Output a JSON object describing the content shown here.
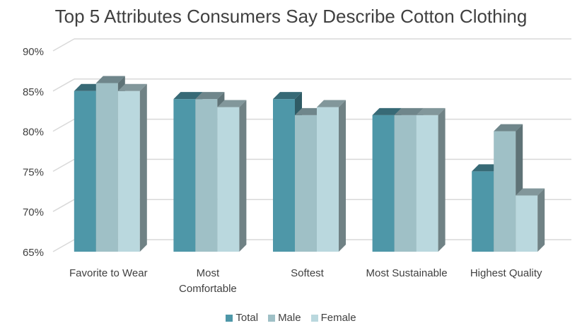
{
  "chart_data": {
    "type": "bar",
    "title": "Top 5 Attributes Consumers Say Describe Cotton Clothing",
    "categories": [
      "Favorite to Wear",
      "Most Comfortable",
      "Softest",
      "Most Sustainable",
      "Highest Quality"
    ],
    "series": [
      {
        "name": "Total",
        "values": [
          85,
          84,
          84,
          82,
          75
        ],
        "color": "#4E97A8"
      },
      {
        "name": "Male",
        "values": [
          86,
          84,
          82,
          82,
          80
        ],
        "color": "#9FC0C6"
      },
      {
        "name": "Female",
        "values": [
          85,
          83,
          83,
          82,
          72
        ],
        "color": "#BAD8DE"
      }
    ],
    "yticks": [
      "65%",
      "70%",
      "75%",
      "80%",
      "85%",
      "90%"
    ],
    "ylim": [
      65,
      90
    ],
    "grid": true,
    "legend": "bottom",
    "style": "3d-clustered-column"
  }
}
